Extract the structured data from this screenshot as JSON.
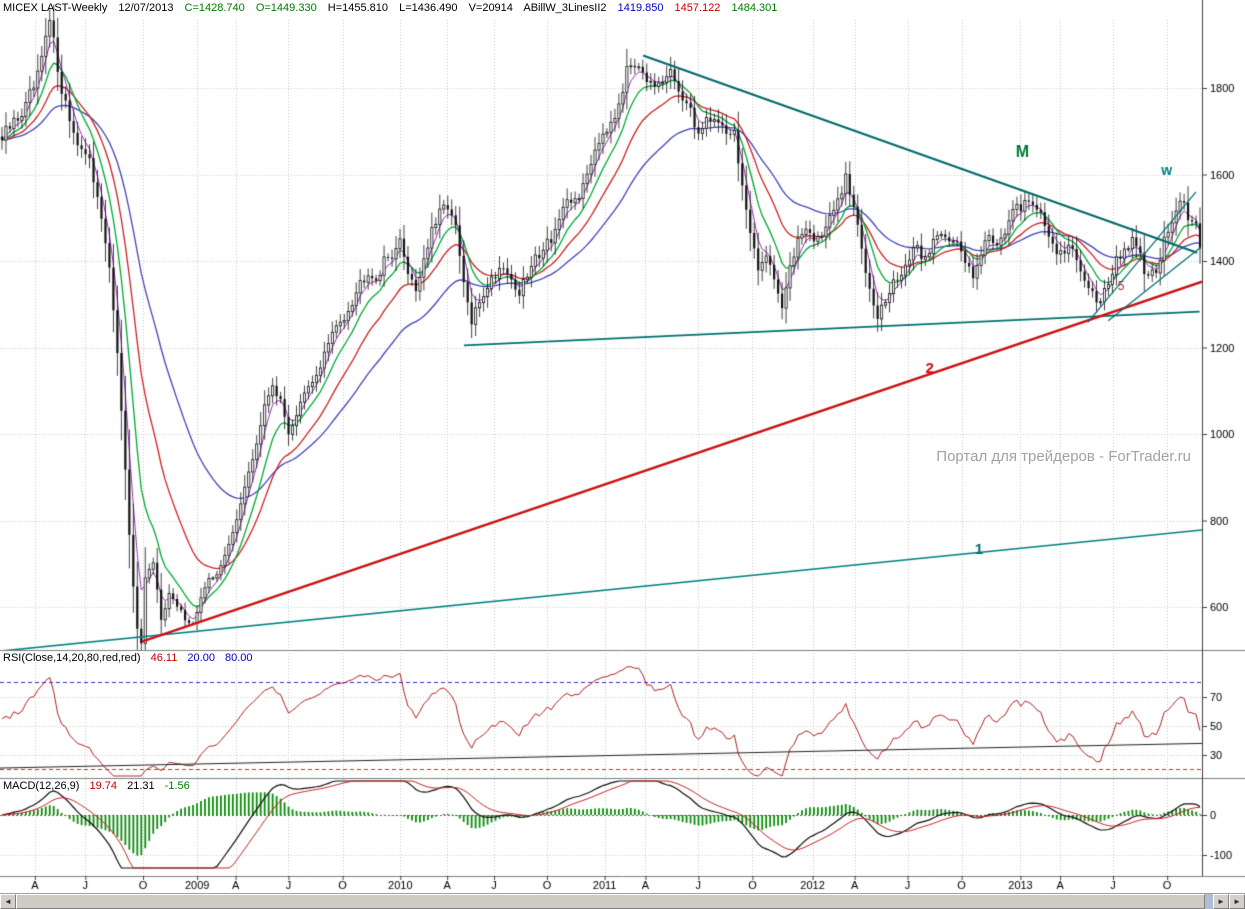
{
  "header": {
    "symbol": "MICEX LAST-Weekly",
    "date": "12/07/2013",
    "close": "C=1428.740",
    "open": "O=1449.330",
    "high": "H=1455.810",
    "low": "L=1436.490",
    "volume": "V=20914",
    "indicator_name": "ABillW_3LinesII2",
    "indicator_value_blue": "1419.850",
    "indicator_value_red": "1457.122",
    "indicator_value_green": "1484.301"
  },
  "watermark": "Портал для трейдеров - ForTrader.ru",
  "rsi_label": {
    "name": "RSI(Close,14,20,80,red,red)",
    "value": "46.11",
    "level1": "20.00",
    "level2": "80.00"
  },
  "macd_label": {
    "name": "MACD(12,26,9)",
    "v1": "19.74",
    "v2": "21.31",
    "v3": "-1.56"
  },
  "scrollbar": {
    "left_arrow": "◄",
    "right_arrow": "►",
    "right_arrow2": "►"
  },
  "colors": {
    "background": "#ffffff",
    "grid": "#c9c9c9",
    "candle": "#111111",
    "ma_fast_green": "#00aa33",
    "ma_mid_red": "#cc2222",
    "ma_slow_blue": "#4444bb",
    "ma_purple": "#9933bb",
    "trend_teal": "#007070",
    "trend_red": "#cc1111",
    "rsi_line": "#b22222",
    "macd_hist_green": "#0b8b0b",
    "macd_line": "#111111",
    "macd_signal": "#cc2222"
  },
  "chart_data": {
    "type": "candlestick",
    "title": "MICEX LAST-Weekly",
    "total_weeks": 302,
    "last_close": 1428.74,
    "price_axis": {
      "ticks": [
        1800,
        1600,
        1400,
        1200,
        1000,
        800,
        600
      ],
      "ylim": [
        450,
        2000
      ]
    },
    "rsi_axis": {
      "ticks": [
        70,
        50,
        30
      ],
      "levels": [
        80,
        20
      ]
    },
    "macd_axis": {
      "ticks": [
        0,
        -100
      ]
    },
    "x_axis": {
      "labels": [
        "A",
        "J",
        "O",
        "2009",
        "A",
        "J",
        "O",
        "2010",
        "A",
        "J",
        "O",
        "2011",
        "A",
        "J",
        "O",
        "2012",
        "A",
        "J",
        "O",
        "2013",
        "A",
        "J",
        "O"
      ],
      "fractions": [
        0.029,
        0.071,
        0.119,
        0.164,
        0.196,
        0.24,
        0.285,
        0.333,
        0.372,
        0.411,
        0.455,
        0.503,
        0.537,
        0.581,
        0.626,
        0.676,
        0.711,
        0.755,
        0.8,
        0.849,
        0.882,
        0.926,
        0.971
      ]
    },
    "weekly_close_anchors": [
      [
        0,
        1680
      ],
      [
        3,
        1720
      ],
      [
        6,
        1755
      ],
      [
        9,
        1820
      ],
      [
        12,
        1950
      ],
      [
        14,
        1850
      ],
      [
        16,
        1760
      ],
      [
        18,
        1700
      ],
      [
        20,
        1660
      ],
      [
        22,
        1620
      ],
      [
        24,
        1560
      ],
      [
        26,
        1450
      ],
      [
        28,
        1290
      ],
      [
        30,
        1060
      ],
      [
        32,
        760
      ],
      [
        34,
        545
      ],
      [
        35,
        515
      ],
      [
        36,
        660
      ],
      [
        38,
        700
      ],
      [
        40,
        575
      ],
      [
        42,
        630
      ],
      [
        44,
        600
      ],
      [
        46,
        575
      ],
      [
        48,
        560
      ],
      [
        50,
        620
      ],
      [
        52,
        660
      ],
      [
        54,
        680
      ],
      [
        56,
        715
      ],
      [
        58,
        770
      ],
      [
        60,
        845
      ],
      [
        62,
        905
      ],
      [
        64,
        980
      ],
      [
        66,
        1060
      ],
      [
        68,
        1120
      ],
      [
        70,
        1070
      ],
      [
        72,
        1005
      ],
      [
        74,
        1045
      ],
      [
        76,
        1090
      ],
      [
        78,
        1115
      ],
      [
        80,
        1160
      ],
      [
        82,
        1210
      ],
      [
        84,
        1245
      ],
      [
        86,
        1275
      ],
      [
        88,
        1310
      ],
      [
        90,
        1350
      ],
      [
        92,
        1380
      ],
      [
        94,
        1360
      ],
      [
        96,
        1395
      ],
      [
        98,
        1420
      ],
      [
        100,
        1440
      ],
      [
        102,
        1380
      ],
      [
        104,
        1335
      ],
      [
        106,
        1405
      ],
      [
        108,
        1465
      ],
      [
        110,
        1505
      ],
      [
        112,
        1535
      ],
      [
        114,
        1470
      ],
      [
        116,
        1345
      ],
      [
        118,
        1255
      ],
      [
        120,
        1305
      ],
      [
        122,
        1345
      ],
      [
        124,
        1370
      ],
      [
        126,
        1395
      ],
      [
        128,
        1355
      ],
      [
        130,
        1325
      ],
      [
        132,
        1365
      ],
      [
        134,
        1405
      ],
      [
        136,
        1435
      ],
      [
        138,
        1455
      ],
      [
        140,
        1495
      ],
      [
        142,
        1525
      ],
      [
        144,
        1545
      ],
      [
        146,
        1565
      ],
      [
        148,
        1635
      ],
      [
        150,
        1685
      ],
      [
        152,
        1715
      ],
      [
        154,
        1745
      ],
      [
        156,
        1805
      ],
      [
        158,
        1855
      ],
      [
        160,
        1868
      ],
      [
        162,
        1825
      ],
      [
        164,
        1785
      ],
      [
        166,
        1805
      ],
      [
        168,
        1835
      ],
      [
        170,
        1795
      ],
      [
        172,
        1755
      ],
      [
        174,
        1715
      ],
      [
        176,
        1705
      ],
      [
        178,
        1735
      ],
      [
        180,
        1720
      ],
      [
        182,
        1705
      ],
      [
        184,
        1695
      ],
      [
        186,
        1575
      ],
      [
        188,
        1455
      ],
      [
        190,
        1375
      ],
      [
        192,
        1425
      ],
      [
        194,
        1365
      ],
      [
        196,
        1295
      ],
      [
        198,
        1375
      ],
      [
        200,
        1455
      ],
      [
        202,
        1485
      ],
      [
        204,
        1445
      ],
      [
        206,
        1465
      ],
      [
        208,
        1495
      ],
      [
        210,
        1535
      ],
      [
        212,
        1585
      ],
      [
        214,
        1525
      ],
      [
        216,
        1425
      ],
      [
        218,
        1345
      ],
      [
        220,
        1278
      ],
      [
        222,
        1305
      ],
      [
        224,
        1345
      ],
      [
        226,
        1375
      ],
      [
        228,
        1405
      ],
      [
        230,
        1425
      ],
      [
        232,
        1405
      ],
      [
        234,
        1445
      ],
      [
        236,
        1475
      ],
      [
        238,
        1455
      ],
      [
        240,
        1435
      ],
      [
        242,
        1395
      ],
      [
        244,
        1375
      ],
      [
        246,
        1425
      ],
      [
        248,
        1455
      ],
      [
        250,
        1445
      ],
      [
        252,
        1475
      ],
      [
        254,
        1505
      ],
      [
        256,
        1525
      ],
      [
        258,
        1548
      ],
      [
        260,
        1525
      ],
      [
        262,
        1475
      ],
      [
        264,
        1445
      ],
      [
        266,
        1415
      ],
      [
        268,
        1435
      ],
      [
        270,
        1395
      ],
      [
        272,
        1365
      ],
      [
        274,
        1325
      ],
      [
        276,
        1312
      ],
      [
        278,
        1355
      ],
      [
        280,
        1395
      ],
      [
        282,
        1425
      ],
      [
        284,
        1445
      ],
      [
        286,
        1405
      ],
      [
        288,
        1355
      ],
      [
        290,
        1385
      ],
      [
        292,
        1445
      ],
      [
        294,
        1495
      ],
      [
        296,
        1532
      ],
      [
        298,
        1505
      ],
      [
        300,
        1472
      ],
      [
        301,
        1429
      ]
    ],
    "moving_averages": [
      {
        "period": 36,
        "color": "#4444bb",
        "width": 1.3,
        "name": "slow-blue"
      },
      {
        "period": 18,
        "color": "#cc2222",
        "width": 1.3,
        "name": "mid-red"
      },
      {
        "period": 9,
        "color": "#00aa33",
        "width": 1.3,
        "name": "fast-green"
      },
      {
        "period": 4,
        "color": "#9933bb",
        "width": 1.0,
        "name": "fastest-purple"
      }
    ],
    "trendlines": [
      {
        "x1": 0.535,
        "p1": 1875,
        "x2": 0.996,
        "p2": 1419,
        "color": "#006a6a",
        "width": 2.2,
        "name": "descending-resistance"
      },
      {
        "x1": 0.386,
        "p1": 1205,
        "x2": 0.998,
        "p2": 1283,
        "color": "#007070",
        "width": 1.6,
        "name": "rising-support"
      },
      {
        "x1": 0.0,
        "p1": 498,
        "x2": 1.0,
        "p2": 778,
        "color": "#008080",
        "width": 1.6,
        "name": "long-uptrend-1"
      },
      {
        "x1": 0.118,
        "p1": 520,
        "x2": 1.0,
        "p2": 1352,
        "color": "#cc1111",
        "width": 2.4,
        "name": "uptrend-2"
      },
      {
        "x1": 0.905,
        "p1": 1258,
        "x2": 0.995,
        "p2": 1560,
        "color": "#007070",
        "width": 1.2,
        "name": "recent-steep-uptrend"
      },
      {
        "x1": 0.922,
        "p1": 1262,
        "x2": 0.999,
        "p2": 1432,
        "color": "#007070",
        "width": 1.2,
        "name": "recent-lower-uptrend"
      }
    ],
    "annotations": [
      {
        "text": "M",
        "x": 0.845,
        "price": 1640,
        "color": "#007a33",
        "size": 16,
        "bold": true
      },
      {
        "text": "w",
        "x": 0.966,
        "price": 1598,
        "color": "#008080",
        "size": 14,
        "bold": true
      },
      {
        "text": "2",
        "x": 0.77,
        "price": 1140,
        "color": "#cc1111",
        "size": 15,
        "bold": true
      },
      {
        "text": "1",
        "x": 0.811,
        "price": 722,
        "color": "#007070",
        "size": 15,
        "bold": true
      },
      {
        "text": "5",
        "x": 0.93,
        "price": 1332,
        "color": "#993333",
        "size": 12,
        "bold": false
      }
    ],
    "rsi_trendline": {
      "x1": 0.0,
      "v1": 21,
      "x2": 1.0,
      "v2": 38,
      "color": "#222222",
      "width": 1
    }
  }
}
